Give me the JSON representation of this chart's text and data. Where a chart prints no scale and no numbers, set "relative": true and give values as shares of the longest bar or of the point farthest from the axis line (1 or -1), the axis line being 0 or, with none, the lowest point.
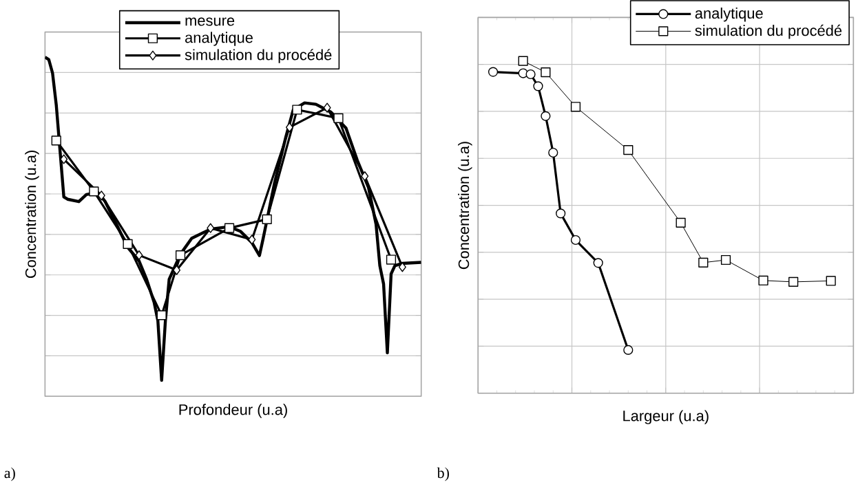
{
  "chart_data": [
    {
      "type": "line",
      "relative": true,
      "xlabel": "Profondeur (u.a)",
      "ylabel": "Concentration (u.a)",
      "grid": "y",
      "legend": "top",
      "tick_labels": false,
      "line_style": "solid",
      "annotations": [
        "a)"
      ],
      "categories": [
        null,
        null,
        null,
        null,
        null,
        null,
        null,
        null,
        null,
        null,
        null,
        null,
        null,
        null,
        null,
        null,
        null,
        null,
        null,
        null,
        null,
        null,
        null,
        null,
        null,
        null,
        null,
        null,
        null,
        null,
        null,
        null,
        null,
        null,
        null,
        null,
        null,
        null,
        null,
        null,
        null,
        null,
        null,
        null,
        null,
        null,
        null,
        null,
        null,
        null,
        null,
        null,
        null,
        null,
        null,
        null,
        null,
        null,
        null,
        null,
        null,
        null,
        null,
        null,
        null,
        null,
        null,
        null,
        null,
        null,
        null,
        null,
        null,
        null,
        null,
        null,
        null,
        null,
        null,
        null,
        null,
        null,
        null,
        null,
        null,
        null,
        null,
        null,
        null,
        null,
        null,
        null,
        null,
        null,
        null,
        null,
        null,
        null,
        null,
        null,
        null
      ],
      "series": [
        {
          "name": "mesure",
          "color": "#000000",
          "marker": "none",
          "values": [
            1.0,
            0.993,
            0.953,
            0.858,
            0.723,
            0.588,
            0.581,
            null,
            null,
            0.574,
            null,
            0.595,
            null,
            null,
            0.601,
            null,
            0.574,
            null,
            null,
            0.507,
            null,
            null,
            0.439,
            null,
            null,
            0.399,
            null,
            0.345,
            null,
            0.277,
            0.223,
            0.047,
            0.223,
            0.345,
            null,
            null,
            0.419,
            null,
            null,
            0.466,
            null,
            null,
            null,
            null,
            0.493,
            null,
            null,
            null,
            null,
            0.5,
            null,
            null,
            0.486,
            null,
            null,
            0.453,
            null,
            0.415,
            0.466,
            0.52,
            null,
            0.628,
            null,
            null,
            0.764,
            null,
            0.845,
            null,
            null,
            0.865,
            null,
            null,
            0.861,
            null,
            null,
            null,
            0.838,
            null,
            null,
            null,
            0.791,
            null,
            null,
            0.696,
            null,
            null,
            0.615,
            null,
            0.507,
            0.385,
            0.331,
            0.128,
            0.361,
            0.385,
            null,
            0.392,
            null,
            null,
            null,
            null,
            0.395
          ]
        },
        {
          "name": "analytique",
          "color": "#000000",
          "marker": "square",
          "values": [
            null,
            null,
            null,
            0.754,
            null,
            null,
            null,
            null,
            null,
            null,
            null,
            null,
            null,
            0.604,
            null,
            null,
            null,
            null,
            null,
            null,
            null,
            null,
            0.449,
            null,
            null,
            null,
            null,
            null,
            null,
            null,
            null,
            0.239,
            null,
            null,
            null,
            null,
            0.416,
            null,
            null,
            null,
            null,
            null,
            null,
            null,
            null,
            null,
            null,
            null,
            null,
            0.496,
            null,
            null,
            null,
            null,
            null,
            null,
            null,
            null,
            null,
            0.522,
            null,
            null,
            null,
            null,
            null,
            null,
            null,
            0.845,
            null,
            null,
            null,
            null,
            null,
            null,
            null,
            null,
            null,
            null,
            0.82,
            null,
            null,
            null,
            null,
            null,
            null,
            null,
            null,
            null,
            null,
            null,
            null,
            null,
            0.403,
            null,
            null,
            null,
            null,
            null,
            null,
            null,
            null
          ]
        },
        {
          "name": "simulation du procédé",
          "color": "#000000",
          "marker": "diamond",
          "values": [
            null,
            null,
            null,
            null,
            null,
            0.699,
            null,
            null,
            null,
            null,
            null,
            null,
            null,
            null,
            null,
            0.592,
            null,
            null,
            null,
            null,
            null,
            null,
            null,
            null,
            null,
            0.416,
            null,
            null,
            null,
            null,
            null,
            null,
            null,
            null,
            null,
            0.372,
            null,
            null,
            null,
            null,
            null,
            null,
            null,
            null,
            0.496,
            null,
            null,
            null,
            null,
            null,
            null,
            null,
            null,
            null,
            null,
            0.462,
            null,
            null,
            null,
            null,
            null,
            null,
            null,
            null,
            null,
            0.793,
            null,
            null,
            null,
            null,
            null,
            null,
            null,
            null,
            null,
            0.851,
            null,
            null,
            null,
            null,
            null,
            null,
            null,
            null,
            null,
            0.649,
            null,
            null,
            null,
            null,
            null,
            null,
            null,
            null,
            null,
            0.381,
            null,
            null,
            null,
            null,
            null
          ]
        }
      ]
    },
    {
      "type": "line",
      "relative": true,
      "xlabel": "Largeur (u.a)",
      "ylabel": "Concentration (u.a)",
      "grid": true,
      "legend": "top right",
      "tick_labels": false,
      "line_style": "solid",
      "annotations": [
        "b)"
      ],
      "categories": [
        null,
        null,
        null,
        null,
        null,
        null,
        null,
        null,
        null,
        null,
        null,
        null,
        null,
        null,
        null,
        null,
        null,
        null,
        null,
        null,
        null,
        null,
        null,
        null,
        null,
        null,
        null,
        null,
        null,
        null,
        null,
        null,
        null,
        null,
        null,
        null,
        null,
        null,
        null,
        null,
        null,
        null,
        null,
        null,
        null,
        null,
        null,
        null,
        null,
        null,
        null
      ],
      "series": [
        {
          "name": "analytique",
          "color": "#000000",
          "marker": "circle",
          "values": [
            null,
            null,
            0.967,
            null,
            null,
            null,
            0.963,
            0.96,
            0.924,
            0.834,
            0.724,
            0.541,
            null,
            0.461,
            null,
            null,
            0.392,
            null,
            null,
            null,
            0.13,
            null,
            null,
            null,
            null,
            null,
            null,
            null,
            null,
            null,
            null,
            null,
            null,
            null,
            null,
            null,
            null,
            null,
            null,
            null,
            null,
            null,
            null,
            null,
            null,
            null,
            null,
            null,
            null,
            null,
            null
          ]
        },
        {
          "name": "simulation du procédé",
          "color": "#000000",
          "marker": "square",
          "values": [
            null,
            null,
            null,
            null,
            null,
            null,
            1.0,
            null,
            null,
            0.966,
            null,
            null,
            null,
            0.862,
            null,
            null,
            null,
            null,
            null,
            null,
            0.732,
            null,
            null,
            null,
            null,
            null,
            null,
            0.513,
            null,
            null,
            0.393,
            null,
            null,
            0.401,
            null,
            null,
            null,
            null,
            0.339,
            null,
            null,
            null,
            0.335,
            null,
            null,
            null,
            null,
            0.338,
            null,
            null,
            null
          ]
        }
      ]
    }
  ]
}
